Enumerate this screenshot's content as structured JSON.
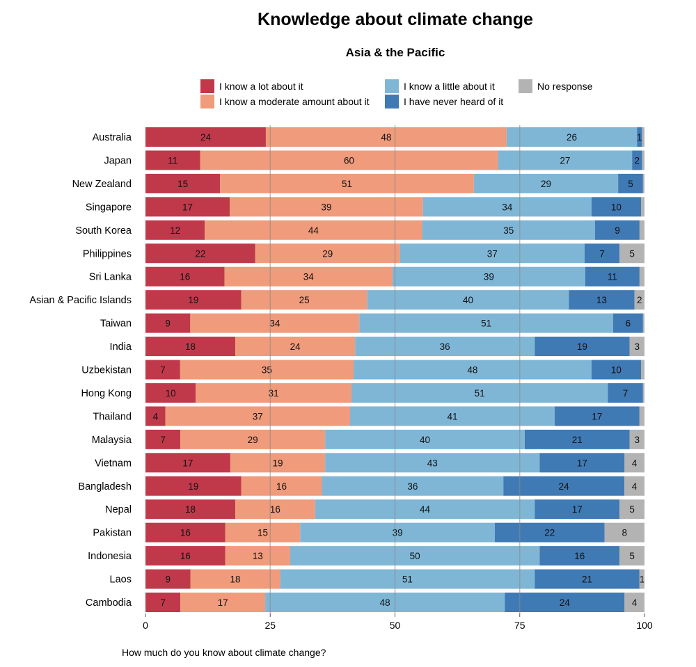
{
  "chart_data": {
    "type": "bar",
    "orientation": "horizontal",
    "stacked": true,
    "title": "Knowledge about climate change",
    "subtitle": "Asia & the Pacific",
    "xlabel": "How much do you know about climate change?",
    "ylabel": "",
    "xlim": [
      0,
      100
    ],
    "xticks": [
      0,
      25,
      50,
      75,
      100
    ],
    "grid": "vertical gridlines at 25, 50, 75",
    "legend_placement": "top",
    "series": [
      {
        "name": "I know a lot about it",
        "color": "#c0394b"
      },
      {
        "name": "I know a moderate amount about it",
        "color": "#f09b7b"
      },
      {
        "name": "I know a little about it",
        "color": "#7fb6d6"
      },
      {
        "name": "I have never heard of it",
        "color": "#3f7ab5"
      },
      {
        "name": "No response",
        "color": "#b3b3b3"
      }
    ],
    "legend_order": [
      0,
      2,
      4,
      1,
      3
    ],
    "categories": [
      "Australia",
      "Japan",
      "New Zealand",
      "Singapore",
      "South Korea",
      "Philippines",
      "Sri Lanka",
      "Asian & Pacific Islands",
      "Taiwan",
      "India",
      "Uzbekistan",
      "Hong Kong",
      "Thailand",
      "Malaysia",
      "Vietnam",
      "Bangladesh",
      "Nepal",
      "Pakistan",
      "Indonesia",
      "Laos",
      "Cambodia"
    ],
    "values": [
      [
        24,
        48,
        26,
        1,
        0.5
      ],
      [
        11,
        60,
        27,
        2,
        0.5
      ],
      [
        15,
        51,
        29,
        5,
        0.3
      ],
      [
        17,
        39,
        34,
        10,
        0.7
      ],
      [
        12,
        44,
        35,
        9,
        1
      ],
      [
        22,
        29,
        37,
        7,
        5
      ],
      [
        16,
        34,
        39,
        11,
        1
      ],
      [
        19,
        25,
        40,
        13,
        2
      ],
      [
        9,
        34,
        51,
        6,
        0.3
      ],
      [
        18,
        24,
        36,
        19,
        3
      ],
      [
        7,
        35,
        48,
        10,
        0.7
      ],
      [
        10,
        31,
        51,
        7,
        0.3
      ],
      [
        4,
        37,
        41,
        17,
        1
      ],
      [
        7,
        29,
        40,
        21,
        3
      ],
      [
        17,
        19,
        43,
        17,
        4
      ],
      [
        19,
        16,
        36,
        24,
        4
      ],
      [
        18,
        16,
        44,
        17,
        5
      ],
      [
        16,
        15,
        39,
        22,
        8
      ],
      [
        16,
        13,
        50,
        16,
        5
      ],
      [
        9,
        18,
        51,
        21,
        1
      ],
      [
        7,
        17,
        48,
        24,
        4
      ]
    ],
    "labels": [
      [
        "24",
        "48",
        "26",
        "1",
        null
      ],
      [
        "11",
        "60",
        "27",
        "2",
        null
      ],
      [
        "15",
        "51",
        "29",
        "5",
        null
      ],
      [
        "17",
        "39",
        "34",
        "10",
        null
      ],
      [
        "12",
        "44",
        "35",
        "9",
        null
      ],
      [
        "22",
        "29",
        "37",
        "7",
        "5"
      ],
      [
        "16",
        "34",
        "39",
        "11",
        null
      ],
      [
        "19",
        "25",
        "40",
        "13",
        "2"
      ],
      [
        "9",
        "34",
        "51",
        "6",
        null
      ],
      [
        "18",
        "24",
        "36",
        "19",
        "3"
      ],
      [
        "7",
        "35",
        "48",
        "10",
        null
      ],
      [
        "10",
        "31",
        "51",
        "7",
        null
      ],
      [
        "4",
        "37",
        "41",
        "17",
        null
      ],
      [
        "7",
        "29",
        "40",
        "21",
        "3"
      ],
      [
        "17",
        "19",
        "43",
        "17",
        "4"
      ],
      [
        "19",
        "16",
        "36",
        "24",
        "4"
      ],
      [
        "18",
        "16",
        "44",
        "17",
        "5"
      ],
      [
        "16",
        "15",
        "39",
        "22",
        "8"
      ],
      [
        "16",
        "13",
        "50",
        "16",
        "5"
      ],
      [
        "9",
        "18",
        "51",
        "21",
        "1"
      ],
      [
        "7",
        "17",
        "48",
        "24",
        "4"
      ]
    ]
  }
}
